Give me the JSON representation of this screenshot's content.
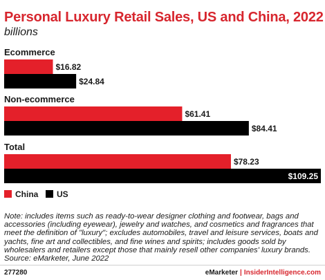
{
  "header": {
    "title": "Personal Luxury Retail Sales, US and China, 2022",
    "subtitle": "billions"
  },
  "chart_data": {
    "type": "bar",
    "orientation": "horizontal",
    "categories": [
      "Ecommerce",
      "Non-ecommerce",
      "Total"
    ],
    "series": [
      {
        "name": "China",
        "values": [
          16.82,
          61.41,
          78.23
        ],
        "labels": [
          "$16.82",
          "$61.41",
          "$78.23"
        ],
        "color": "#e4202a"
      },
      {
        "name": "US",
        "values": [
          24.84,
          84.41,
          109.25
        ],
        "labels": [
          "$24.84",
          "$84.41",
          "$109.25"
        ],
        "color": "#000000"
      }
    ],
    "xlim": [
      0,
      109.25
    ],
    "grid": false,
    "legend": "bottom-left"
  },
  "note": "Note: includes items such as ready-to-wear designer clothing and footwear, bags and accessories (including eyewear), jewelry and watches, and cosmetics and fragrances that meet the definition of \"luxury\"; excludes automobiles, travel and leisure services, boats and yachts, fine art and collectibles, and fine wines and spirits; includes goods sold by wholesalers and retailers except those that mainly resell other companies' luxury brands.",
  "source": "Source: eMarketer, June 2022",
  "footer": {
    "id": "277280",
    "brand": "eMarketer",
    "separator": "|",
    "site": "InsiderIntelligence.com"
  }
}
